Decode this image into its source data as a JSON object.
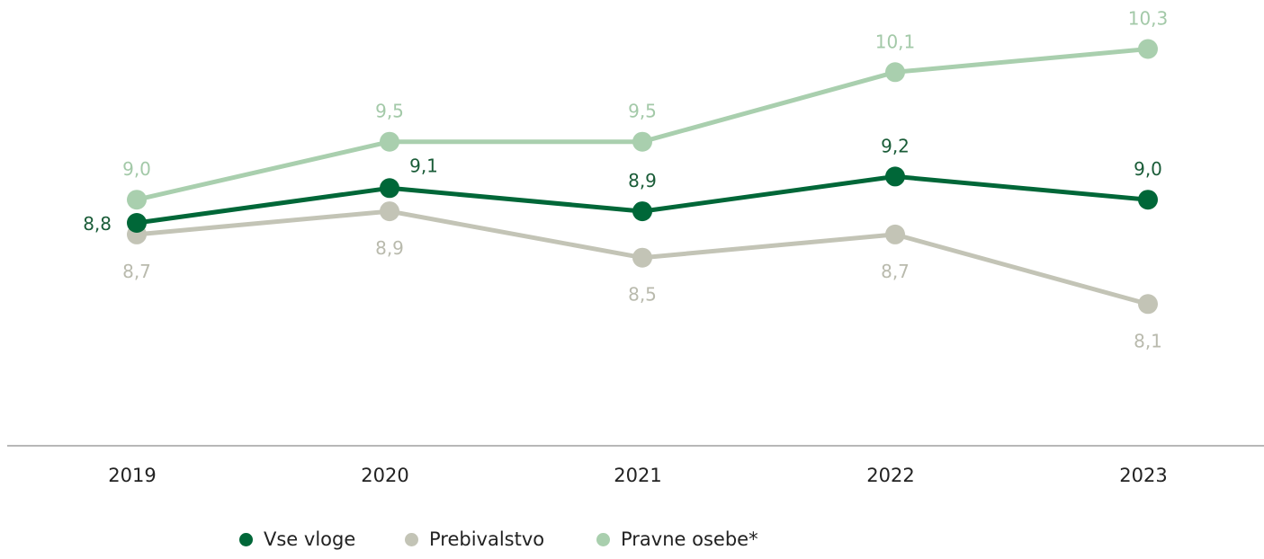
{
  "chart_data": {
    "type": "line",
    "x": [
      "2019",
      "2020",
      "2021",
      "2022",
      "2023"
    ],
    "series": [
      {
        "name": "Vse vloge",
        "color": "#006738",
        "labelColor": "#1a5c38",
        "values": [
          8.8,
          9.1,
          8.9,
          9.2,
          9.0
        ],
        "labels": [
          "8,8",
          "9,1",
          "8,9",
          "9,2",
          "9,0"
        ]
      },
      {
        "name": "Prebivalstvo",
        "color": "#c3c4b6",
        "labelColor": "#b9baad",
        "values": [
          8.7,
          8.9,
          8.5,
          8.7,
          8.1
        ],
        "labels": [
          "8,7",
          "8,9",
          "8,5",
          "8,7",
          "8,1"
        ]
      },
      {
        "name": "Pravne osebe*",
        "color": "#a9cfae",
        "labelColor": "#a3c9a8",
        "values": [
          9.0,
          9.5,
          9.5,
          10.1,
          10.3
        ],
        "labels": [
          "9,0",
          "9,5",
          "9,5",
          "10,1",
          "10,3"
        ]
      }
    ],
    "ylim": [
      7.4,
      10.6
    ],
    "grid": false,
    "legend_position": "bottom"
  }
}
